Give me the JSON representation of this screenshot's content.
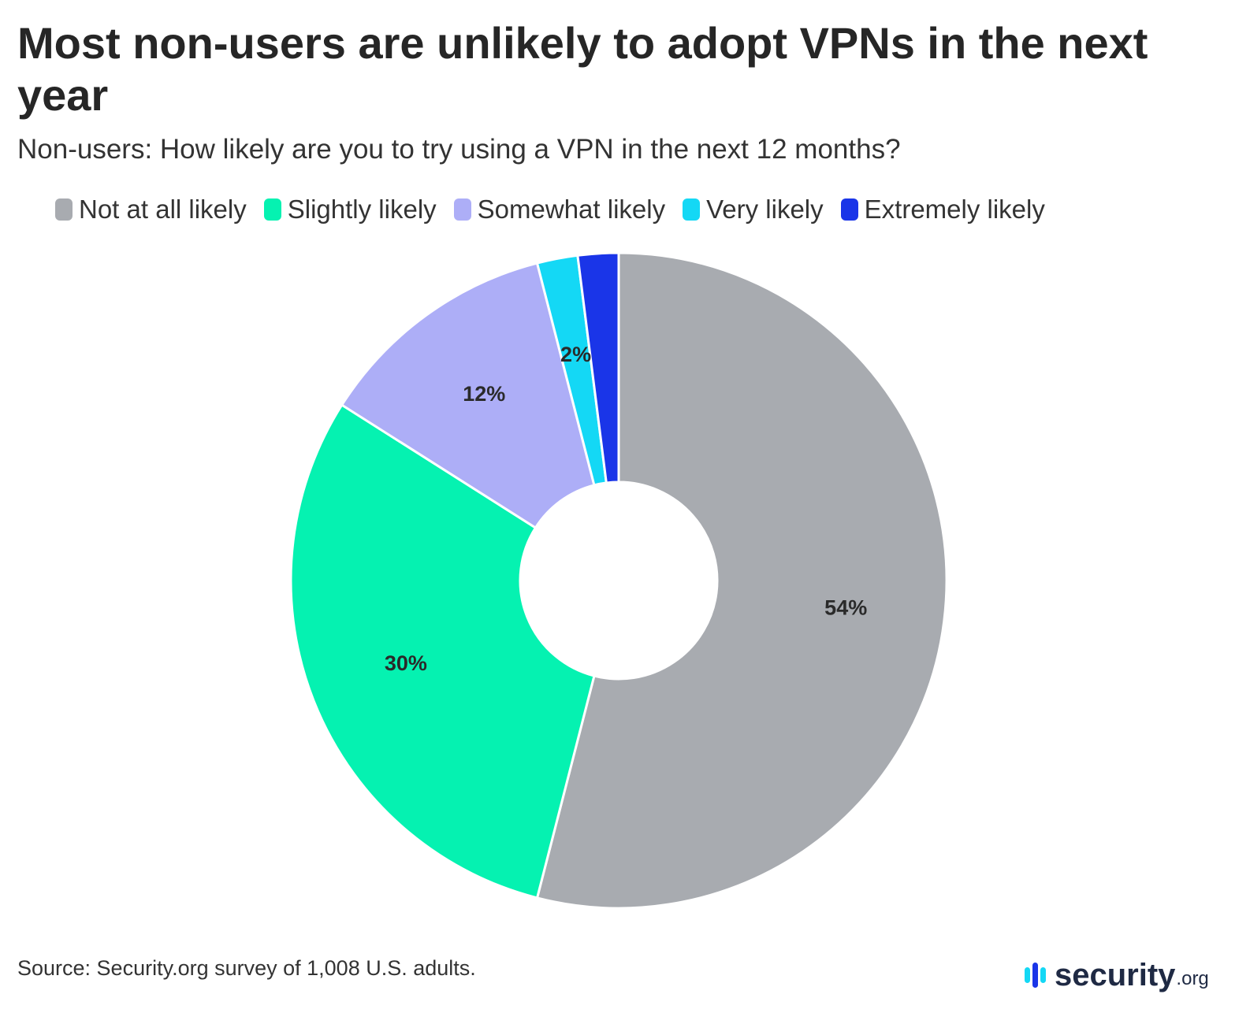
{
  "title": "Most non-users are unlikely to adopt VPNs in the next year",
  "subtitle": "Non-users: How likely are you to try using a VPN in the next 12 months?",
  "source": "Source: Security.org survey of 1,008 U.S. adults.",
  "brand": {
    "name": "security",
    "tld": ".org"
  },
  "chart_data": {
    "type": "pie",
    "subtype": "donut",
    "legend_position": "top",
    "categories": [
      "Not at all likely",
      "Slightly likely",
      "Somewhat likely",
      "Very likely",
      "Extremely likely"
    ],
    "values": [
      54,
      30,
      12,
      2,
      2
    ],
    "labels": [
      "54%",
      "30%",
      "12%",
      "2%",
      ""
    ],
    "colors": [
      "#a8abb0",
      "#05f2b1",
      "#adaef7",
      "#14d8f5",
      "#1a35e8"
    ]
  }
}
